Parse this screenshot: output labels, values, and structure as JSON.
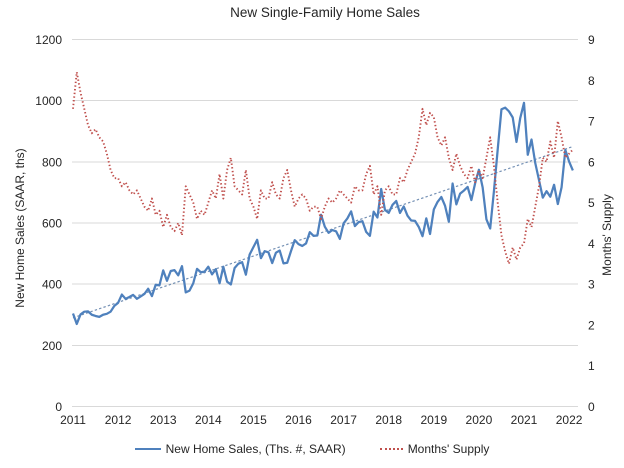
{
  "chart_data": {
    "type": "line",
    "title": "New Single-Family Home Sales",
    "x_axis": {
      "frequency": "monthly",
      "start": "2011-01",
      "end": "2022-02",
      "tick_labels": [
        "2011",
        "2012",
        "2013",
        "2014",
        "2015",
        "2016",
        "2017",
        "2018",
        "2019",
        "2020",
        "2021",
        "2022"
      ]
    },
    "left_axis": {
      "title": "New Home Sales (SAAR, ths)",
      "range": [
        0,
        1200
      ],
      "ticks": [
        0,
        200,
        400,
        600,
        800,
        1000,
        1200
      ]
    },
    "right_axis": {
      "title": "Months' Supply",
      "range": [
        0,
        9
      ],
      "ticks": [
        0,
        1,
        2,
        3,
        4,
        5,
        6,
        7,
        8,
        9
      ]
    },
    "grid": "horizontal",
    "legend_position": "bottom",
    "series": [
      {
        "name": "New Home Sales, (Ths. #, SAAR)",
        "axis": "left",
        "color": "#4F81BD",
        "line_style": "solid",
        "values": [
          304,
          270,
          301,
          310,
          311,
          300,
          296,
          293,
          300,
          303,
          310,
          329,
          339,
          366,
          352,
          358,
          365,
          352,
          360,
          368,
          385,
          361,
          398,
          396,
          445,
          411,
          443,
          446,
          429,
          459,
          373,
          379,
          403,
          450,
          439,
          441,
          457,
          432,
          449,
          403,
          457,
          408,
          399,
          453,
          467,
          472,
          431,
          497,
          521,
          545,
          485,
          508,
          504,
          469,
          503,
          510,
          468,
          470,
          508,
          544,
          531,
          525,
          533,
          570,
          558,
          559,
          627,
          588,
          568,
          577,
          573,
          548,
          599,
          615,
          638,
          590,
          603,
          606,
          571,
          558,
          637,
          618,
          711,
          643,
          633,
          659,
          672,
          633,
          654,
          624,
          608,
          607,
          587,
          557,
          615,
          564,
          644,
          669,
          685,
          656,
          604,
          729,
          661,
          696,
          706,
          718,
          675,
          730,
          774,
          716,
          612,
          582,
          704,
          840,
          972,
          977,
          965,
          945,
          865,
          943,
          993,
          823,
          873,
          796,
          740,
          683,
          704,
          686,
          725,
          662,
          717,
          839,
          801,
          772
        ]
      },
      {
        "name": "Months' Supply",
        "axis": "right",
        "color": "#C0504D",
        "line_style": "dotted",
        "values": [
          7.3,
          8.2,
          7.7,
          7.3,
          6.9,
          6.7,
          6.8,
          6.6,
          6.5,
          6.2,
          5.8,
          5.6,
          5.6,
          5.4,
          5.5,
          5.3,
          5.2,
          5.3,
          5.1,
          4.9,
          4.8,
          5.1,
          4.7,
          4.8,
          4.4,
          4.7,
          4.4,
          4.3,
          4.5,
          4.2,
          5.4,
          5.2,
          5.0,
          4.6,
          4.8,
          4.7,
          5.0,
          5.3,
          5.1,
          5.7,
          5.1,
          5.8,
          6.1,
          5.4,
          5.3,
          5.2,
          5.8,
          5.1,
          4.9,
          4.6,
          5.3,
          5.1,
          5.1,
          5.5,
          5.2,
          5.1,
          5.6,
          5.8,
          5.3,
          4.9,
          5.1,
          5.2,
          5.1,
          4.8,
          4.9,
          4.9,
          4.6,
          4.9,
          5.1,
          5.0,
          5.1,
          5.3,
          5.2,
          5.1,
          5.0,
          5.4,
          5.3,
          5.3,
          5.7,
          5.9,
          5.2,
          5.4,
          4.7,
          5.3,
          5.4,
          5.2,
          5.2,
          5.6,
          5.5,
          5.8,
          6.0,
          6.2,
          6.6,
          7.3,
          6.9,
          7.2,
          7.1,
          6.6,
          6.4,
          6.6,
          6.1,
          5.8,
          6.2,
          5.9,
          5.7,
          5.6,
          5.9,
          5.5,
          5.8,
          5.6,
          6.1,
          6.6,
          5.9,
          5.0,
          4.2,
          3.8,
          3.5,
          3.9,
          3.6,
          3.9,
          4.0,
          4.6,
          4.4,
          4.9,
          5.4,
          6.1,
          6.0,
          6.5,
          6.1,
          7.0,
          6.6,
          6.1,
          6.2,
          6.3
        ]
      }
    ],
    "trendline": {
      "for_series": "New Home Sales, (Ths. #, SAAR)",
      "type": "linear",
      "axis": "left",
      "color": "#7490B4",
      "line_style": "dotted",
      "start_value": 290,
      "end_value": 850
    }
  },
  "colors": {
    "grid": "#D9D9D9",
    "text": "#262626",
    "background": "#FFFFFF"
  }
}
